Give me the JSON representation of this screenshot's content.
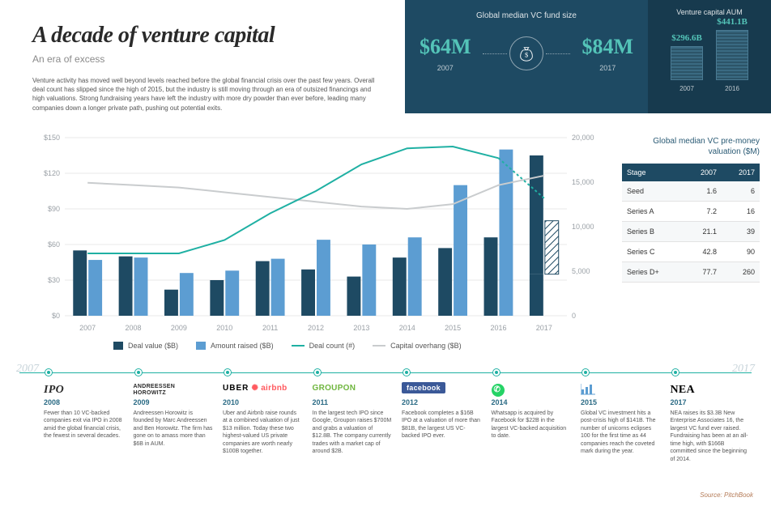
{
  "header": {
    "title": "A decade of venture capital",
    "subtitle": "An era of excess",
    "intro": "Venture activity has moved well beyond levels reached before the global financial crisis over the past few years. Overall deal count has slipped since the high of 2015, but the industry is still moving through an era of outsized financings and high valuations. Strong fundraising years have left the industry with more dry powder than ever before, leading many companies down a longer private path, pushing out potential exits."
  },
  "fund_size": {
    "title": "Global median VC fund size",
    "left_value": "$64M",
    "left_year": "2007",
    "right_value": "$84M",
    "right_year": "2017"
  },
  "aum": {
    "title": "Venture capital AUM",
    "left_value": "$296.6B",
    "left_year": "2007",
    "left_height": 42,
    "right_value": "$441.1B",
    "right_year": "2016",
    "right_height": 62
  },
  "chart": {
    "years": [
      "2007",
      "2008",
      "2009",
      "2010",
      "2011",
      "2012",
      "2013",
      "2014",
      "2015",
      "2016",
      "2017"
    ],
    "deal_value": [
      55,
      50,
      22,
      30,
      46,
      39,
      33,
      49,
      57,
      66,
      35
    ],
    "amount_raised": [
      47,
      49,
      36,
      38,
      48,
      64,
      60,
      66,
      110,
      140,
      135
    ],
    "amount_raised_projected_last": 80,
    "deal_count": [
      7000,
      7000,
      7000,
      8500,
      11500,
      14000,
      17000,
      18800,
      19000,
      17700,
      13200
    ],
    "capital_overhang": [
      112,
      110,
      108,
      104,
      100,
      96,
      92,
      90,
      94,
      110,
      118
    ],
    "y_left_max": 150,
    "y_left_ticks": [
      0,
      30,
      60,
      90,
      120,
      150
    ],
    "y_left_prefix": "$",
    "y_right_max": 20000,
    "y_right_ticks": [
      0,
      5000,
      10000,
      15000,
      20000
    ],
    "colors": {
      "deal_value": "#1e4a63",
      "amount_raised": "#5c9dd2",
      "deal_count": "#1fb0a3",
      "capital_overhang": "#c9ccce",
      "grid": "#e8e8e8",
      "axis_text": "#9aa0a6"
    },
    "legend": [
      {
        "label": "Deal value ($B)",
        "type": "sw",
        "color": "#1e4a63"
      },
      {
        "label": "Amount raised ($B)",
        "type": "sw",
        "color": "#5c9dd2"
      },
      {
        "label": "Deal count (#)",
        "type": "ln",
        "color": "#1fb0a3"
      },
      {
        "label": "Capital overhang ($B)",
        "type": "ln",
        "color": "#c9ccce"
      }
    ]
  },
  "valuation": {
    "title": "Global median VC pre-money valuation ($M)",
    "columns": [
      "Stage",
      "2007",
      "2017"
    ],
    "rows": [
      [
        "Seed",
        "1.6",
        "6"
      ],
      [
        "Series A",
        "7.2",
        "16"
      ],
      [
        "Series B",
        "21.1",
        "39"
      ],
      [
        "Series C",
        "42.8",
        "90"
      ],
      [
        "Series D+",
        "77.7",
        "260"
      ]
    ]
  },
  "timeline": {
    "start_year": "2007",
    "end_year": "2017",
    "items": [
      {
        "logo": "IPO",
        "logo_style": "serif-italic",
        "logo_color": "#2a2a2a",
        "year": "2008",
        "year_color": "#2a6a84",
        "text": "Fewer than 10 VC-backed companies exit via IPO in 2008 amid the global financial crisis, the fewest in several decades."
      },
      {
        "logo": "ANDREESSEN HOROWITZ",
        "logo_style": "small-caps",
        "logo_color": "#2a2a2a",
        "year": "2009",
        "year_color": "#2a6a84",
        "text": "Andreessen Horowitz is founded by Marc Andreessen and Ben Horowitz. The firm has gone on to amass more than $6B in AUM."
      },
      {
        "logo": "UBER  airbnb",
        "logo_style": "brands",
        "logo_color": "#000000",
        "year": "2010",
        "year_color": "#2a6a84",
        "text": "Uber and Airbnb raise rounds at a combined valuation of just $13 million. Today these two highest-valued US private companies are worth nearly $100B together."
      },
      {
        "logo": "GROUPON",
        "logo_style": "bold",
        "logo_color": "#6fb63e",
        "year": "2011",
        "year_color": "#2a6a84",
        "text": "In the largest tech IPO since Google, Groupon raises $700M and grabs a valuation of $12.8B. The company currently trades with a market cap of around $2B."
      },
      {
        "logo": "facebook",
        "logo_style": "fb",
        "logo_color": "#ffffff",
        "year": "2012",
        "year_color": "#2a6a84",
        "text": "Facebook completes a $16B IPO at a valuation of more than $81B, the largest US VC-backed IPO ever."
      },
      {
        "logo": "whatsapp-icon",
        "logo_style": "icon",
        "logo_color": "#25d366",
        "year": "2014",
        "year_color": "#2a6a84",
        "text": "Whatsapp is acquired by Facebook for $22B in the largest VC-backed acquisition to date."
      },
      {
        "logo": "bar-chart-icon",
        "logo_style": "icon",
        "logo_color": "#5c9dd2",
        "year": "2015",
        "year_color": "#2a6a84",
        "text": "Global VC investment hits a post-crisis high of $141B. The number of unicorns eclipses 100 for the first time as 44 companies reach the coveted mark during the year."
      },
      {
        "logo": "NEA",
        "logo_style": "nea",
        "logo_color": "#000000",
        "year": "2017",
        "year_color": "#2a6a84",
        "text": "NEA raises its $3.3B New Enterprise Associates 16, the largest VC fund ever raised. Fundraising has been at an all-time high, with $166B committed since the beginning of 2014."
      }
    ],
    "source": "Source: PitchBook"
  }
}
